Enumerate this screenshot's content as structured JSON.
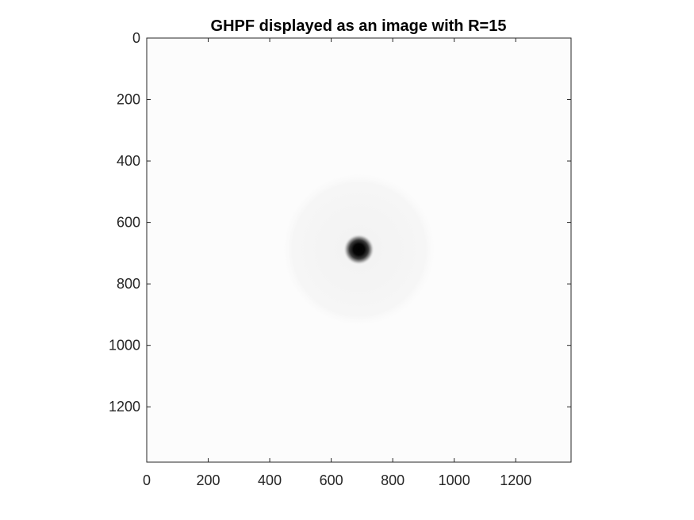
{
  "chart_data": {
    "type": "heatmap",
    "title": "GHPF displayed as an image with R=15",
    "xlabel": "",
    "ylabel": "",
    "xlim": [
      0,
      1380
    ],
    "ylim": [
      0,
      1380
    ],
    "y_reversed": true,
    "x_ticks": [
      0,
      200,
      400,
      600,
      800,
      1000,
      1200
    ],
    "y_ticks": [
      0,
      200,
      400,
      600,
      800,
      1000,
      1200
    ],
    "x_tick_labels": [
      "0",
      "200",
      "400",
      "600",
      "800",
      "1000",
      "1200"
    ],
    "y_tick_labels": [
      "0",
      "200",
      "400",
      "600",
      "800",
      "1000",
      "1200"
    ],
    "colormap": "gray",
    "filter": {
      "kind": "Gaussian high-pass",
      "center": [
        690,
        688
      ],
      "cutoff_R": 15,
      "background_value": 0.99,
      "center_value": 0.0,
      "halo_radius": 255,
      "halo_value": 0.96
    },
    "grid": false
  },
  "colors": {
    "axis": "#262626",
    "background": "#ffffff",
    "image_bg": "#fcfcfc"
  }
}
